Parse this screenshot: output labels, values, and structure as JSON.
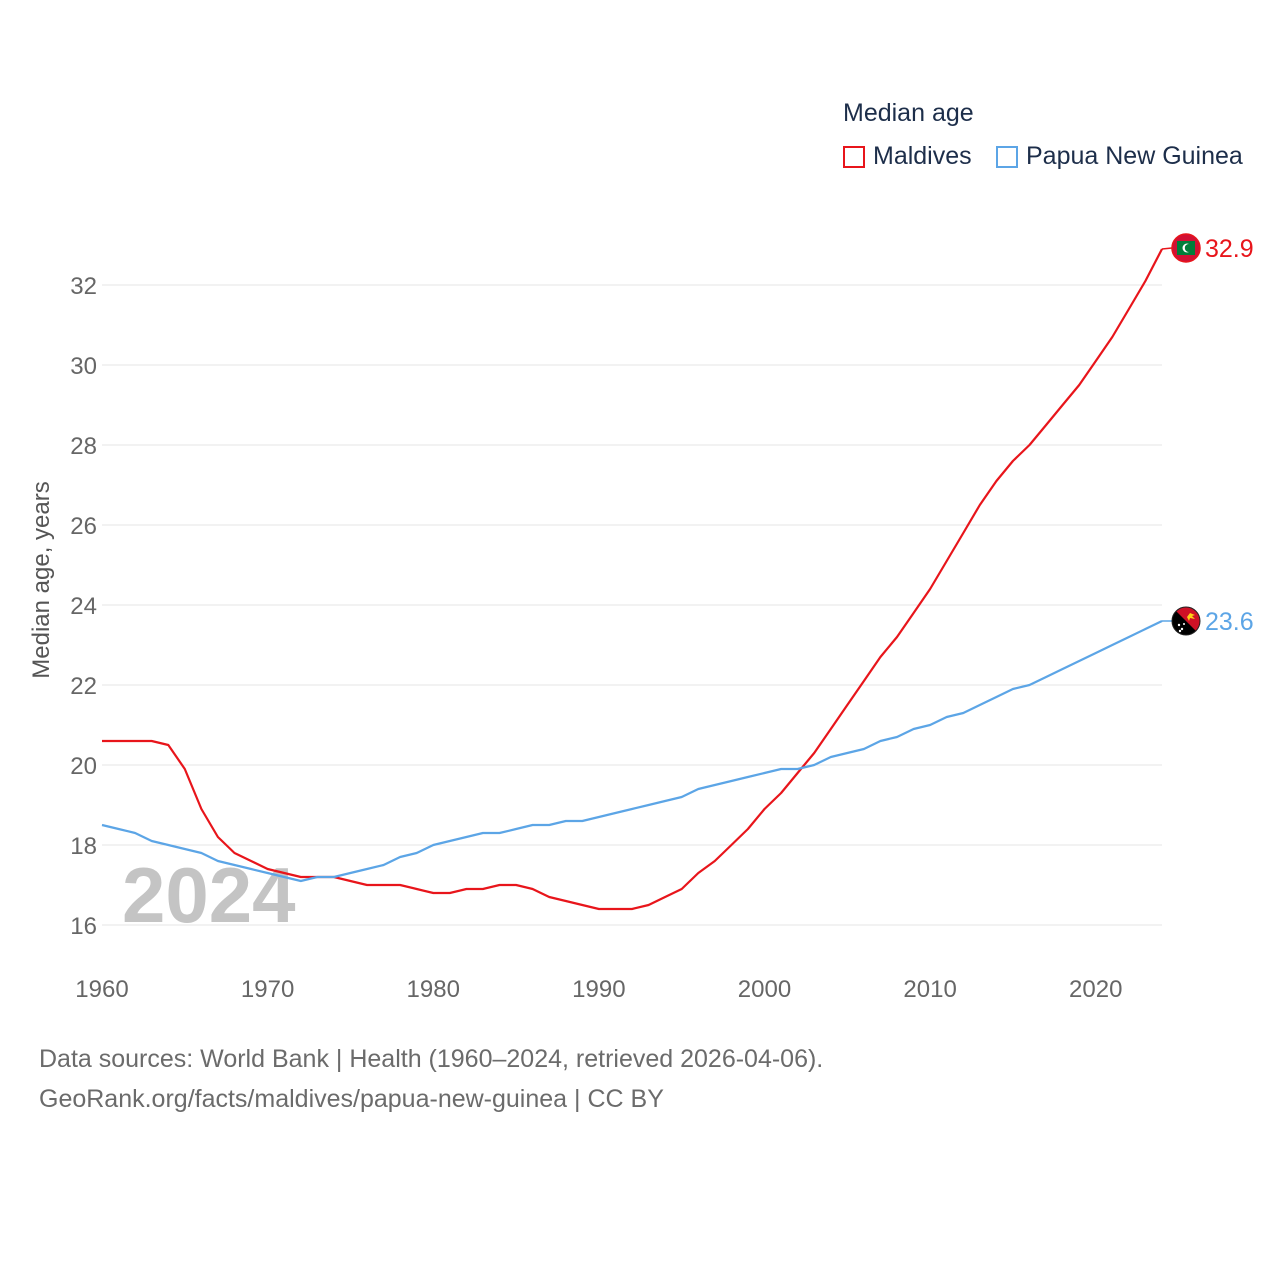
{
  "chart_data": {
    "type": "line",
    "title": "Median age",
    "ylabel": "Median age, years",
    "xlabel": "",
    "watermark_year": "2024",
    "xlim": [
      1960,
      2024
    ],
    "ylim": [
      15,
      33.5
    ],
    "x_ticks": [
      1960,
      1970,
      1980,
      1990,
      2000,
      2010,
      2020
    ],
    "y_ticks": [
      16,
      18,
      20,
      22,
      24,
      26,
      28,
      30,
      32
    ],
    "x": [
      1960,
      1961,
      1962,
      1963,
      1964,
      1965,
      1966,
      1967,
      1968,
      1969,
      1970,
      1971,
      1972,
      1973,
      1974,
      1975,
      1976,
      1977,
      1978,
      1979,
      1980,
      1981,
      1982,
      1983,
      1984,
      1985,
      1986,
      1987,
      1988,
      1989,
      1990,
      1991,
      1992,
      1993,
      1994,
      1995,
      1996,
      1997,
      1998,
      1999,
      2000,
      2001,
      2002,
      2003,
      2004,
      2005,
      2006,
      2007,
      2008,
      2009,
      2010,
      2011,
      2012,
      2013,
      2014,
      2015,
      2016,
      2017,
      2018,
      2019,
      2020,
      2021,
      2022,
      2023,
      2024
    ],
    "series": [
      {
        "name": "Maldives",
        "color": "#e8151b",
        "end_label": "32.9",
        "flag": "maldives-flag-icon",
        "values": [
          20.6,
          20.6,
          20.6,
          20.6,
          20.5,
          19.9,
          18.9,
          18.2,
          17.8,
          17.6,
          17.4,
          17.3,
          17.2,
          17.2,
          17.2,
          17.1,
          17.0,
          17.0,
          17.0,
          16.9,
          16.8,
          16.8,
          16.9,
          16.9,
          17.0,
          17.0,
          16.9,
          16.7,
          16.6,
          16.5,
          16.4,
          16.4,
          16.4,
          16.5,
          16.7,
          16.9,
          17.3,
          17.6,
          18.0,
          18.4,
          18.9,
          19.3,
          19.8,
          20.3,
          20.9,
          21.5,
          22.1,
          22.7,
          23.2,
          23.8,
          24.4,
          25.1,
          25.8,
          26.5,
          27.1,
          27.6,
          28.0,
          28.5,
          29.0,
          29.5,
          30.1,
          30.7,
          31.4,
          32.1,
          32.9
        ]
      },
      {
        "name": "Papua New Guinea",
        "color": "#5ca5e6",
        "end_label": "23.6",
        "flag": "papua-new-guinea-flag-icon",
        "values": [
          18.5,
          18.4,
          18.3,
          18.1,
          18.0,
          17.9,
          17.8,
          17.6,
          17.5,
          17.4,
          17.3,
          17.2,
          17.1,
          17.2,
          17.2,
          17.3,
          17.4,
          17.5,
          17.7,
          17.8,
          18.0,
          18.1,
          18.2,
          18.3,
          18.3,
          18.4,
          18.5,
          18.5,
          18.6,
          18.6,
          18.7,
          18.8,
          18.9,
          19.0,
          19.1,
          19.2,
          19.4,
          19.5,
          19.6,
          19.7,
          19.8,
          19.9,
          19.9,
          20.0,
          20.2,
          20.3,
          20.4,
          20.6,
          20.7,
          20.9,
          21.0,
          21.2,
          21.3,
          21.5,
          21.7,
          21.9,
          22.0,
          22.2,
          22.4,
          22.6,
          22.8,
          23.0,
          23.2,
          23.4,
          23.6
        ]
      }
    ]
  },
  "legend": {
    "title": "Median age",
    "items": [
      "Maldives",
      "Papua New Guinea"
    ]
  },
  "source": {
    "line1": "Data sources: World Bank | Health (1960–2024, retrieved 2026-04-06).",
    "line2": "GeoRank.org/facts/maldives/papua-new-guinea | CC BY"
  },
  "colors": {
    "grid": "#e6e6e6",
    "tick_text": "#666666",
    "watermark": "#c4c4c4",
    "legend_text": "#1d2e4a"
  }
}
